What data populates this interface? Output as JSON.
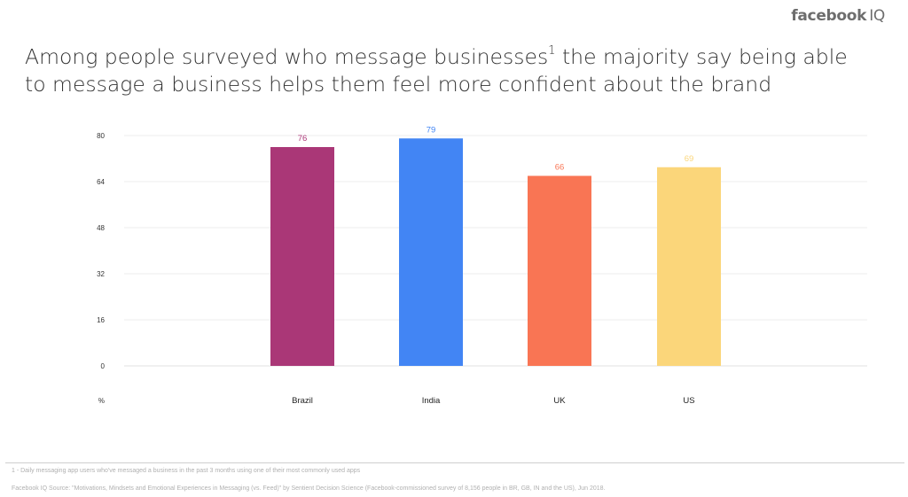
{
  "brand": {
    "logo_text": "facebook",
    "logo_suffix": "IQ"
  },
  "headline": {
    "part1": "Among people surveyed who message businesses",
    "superscript": "1",
    "part2": " the majority say being able to message a business helps them feel more confident about the brand"
  },
  "chart_data": {
    "type": "bar",
    "categories": [
      "Brazil",
      "India",
      "UK",
      "US"
    ],
    "values": [
      76,
      79,
      66,
      69
    ],
    "colors": [
      "#aa3777",
      "#4285f4",
      "#f97554",
      "#fbd67a"
    ],
    "label_colors": [
      "#aa3777",
      "#4285f4",
      "#f97554",
      "#fbd67a"
    ],
    "yticks": [
      0,
      16,
      32,
      48,
      64,
      80
    ],
    "ylim": [
      0,
      80
    ],
    "unit_label": "%",
    "grid": true
  },
  "footnotes": {
    "note1": "1 - Daily messaging app users who've messaged a business in the past 3 months using one of their most commonly used apps",
    "source": "Facebook IQ Source: \"Motivations, Mindsets and Emotional Experiences in Messaging (vs. Feed)\" by Sentient Decision Science (Facebook-commissioned survey of 8,156 people in BR, GB, IN and the US), Jun 2018."
  }
}
